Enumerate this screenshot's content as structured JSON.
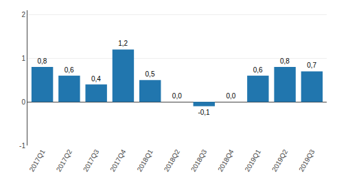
{
  "chart_data": {
    "type": "bar",
    "categories": [
      "2017Q1",
      "2017Q2",
      "2017Q3",
      "2017Q4",
      "2018Q1",
      "2018Q2",
      "2018Q3",
      "2018Q4",
      "2019Q1",
      "2019Q2",
      "2019Q3"
    ],
    "values": [
      0.8,
      0.6,
      0.4,
      1.2,
      0.5,
      0.0,
      -0.1,
      0.0,
      0.6,
      0.8,
      0.7
    ],
    "value_labels": [
      "0,8",
      "0,6",
      "0,4",
      "1,2",
      "0,5",
      "0,0",
      "-0,1",
      "0,0",
      "0,6",
      "0,8",
      "0,7"
    ],
    "data_labels": true,
    "color": "#2176AE",
    "ylim": [
      -1.0,
      2.1
    ],
    "yticks": [
      -1,
      0,
      1,
      2
    ],
    "grid": true
  }
}
